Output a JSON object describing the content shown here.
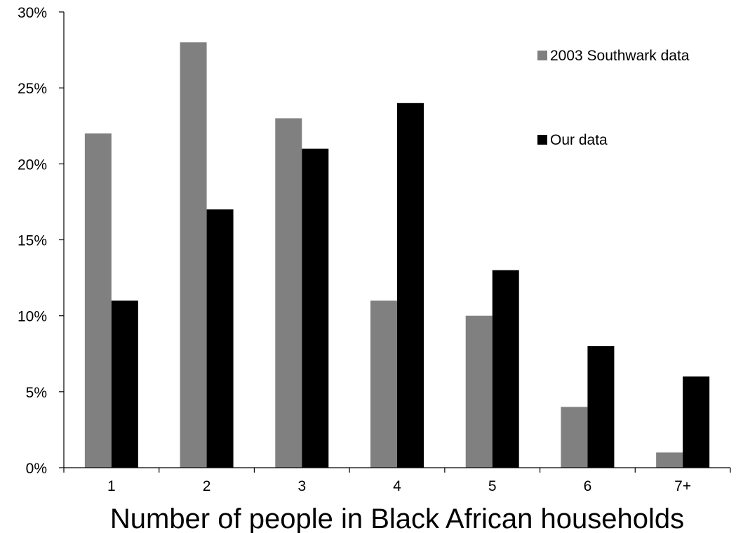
{
  "chart_data": {
    "type": "bar",
    "categories": [
      "1",
      "2",
      "3",
      "4",
      "5",
      "6",
      "7+"
    ],
    "series": [
      {
        "name": "2003 Southwark data",
        "values": [
          22,
          28,
          23,
          11,
          10,
          4,
          1
        ],
        "color": "#808080"
      },
      {
        "name": "Our data",
        "values": [
          11,
          17,
          21,
          24,
          13,
          8,
          6
        ],
        "color": "#000000"
      }
    ],
    "title": "",
    "xlabel": "Number of people in Black African households",
    "ylabel": "",
    "ylim": [
      0,
      30
    ],
    "yticks": [
      0,
      5,
      10,
      15,
      20,
      25,
      30
    ],
    "ytick_labels": [
      "0%",
      "5%",
      "10%",
      "15%",
      "20%",
      "25%",
      "30%"
    ],
    "grid": false,
    "legend_position": "top-right"
  }
}
